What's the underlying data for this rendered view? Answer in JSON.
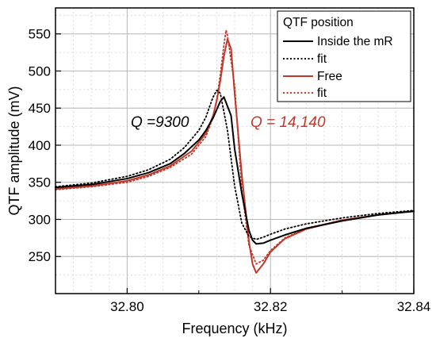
{
  "chart_data": {
    "type": "line",
    "xlabel": "Frequency (kHz)",
    "ylabel": "QTF amplitude (mV)",
    "xlim": [
      32.79,
      32.84
    ],
    "ylim": [
      200,
      585
    ],
    "xticks": [
      "32.80",
      "32.82",
      "32.84"
    ],
    "yticks": [
      "250",
      "300",
      "350",
      "400",
      "450",
      "500",
      "550"
    ],
    "grid": true,
    "legend": {
      "title": "QTF position",
      "placement": "top-right",
      "entries": [
        {
          "label": "Inside the mR",
          "color": "#000000",
          "style": "solid"
        },
        {
          "label": "fit",
          "color": "#000000",
          "style": "dotted"
        },
        {
          "label": "Free",
          "color": "#c0392b",
          "style": "solid"
        },
        {
          "label": "fit",
          "color": "#c0392b",
          "style": "dotted"
        }
      ]
    },
    "annotations": [
      {
        "text": "Q =9300",
        "color": "#000000"
      },
      {
        "text": "Q = 14,140",
        "color": "#c0392b"
      }
    ],
    "series": [
      {
        "name": "Inside the mR",
        "color": "#000000",
        "style": "solid",
        "x": [
          32.79,
          32.795,
          32.8,
          32.803,
          32.806,
          32.808,
          32.81,
          32.811,
          32.812,
          32.8125,
          32.813,
          32.8135,
          32.8145,
          32.815,
          32.816,
          32.817,
          32.8175,
          32.818,
          32.819,
          32.82,
          32.822,
          32.825,
          32.83,
          32.835,
          32.84
        ],
        "y": [
          343,
          347,
          355,
          363,
          375,
          389,
          407,
          420,
          437,
          448,
          459,
          465,
          440,
          395,
          335,
          285,
          272,
          267,
          268,
          272,
          279,
          288,
          298,
          306,
          311
        ]
      },
      {
        "name": "fit",
        "color": "#000000",
        "style": "dotted",
        "x": [
          32.79,
          32.795,
          32.8,
          32.803,
          32.806,
          32.808,
          32.81,
          32.811,
          32.8115,
          32.812,
          32.8125,
          32.813,
          32.814,
          32.815,
          32.816,
          32.817,
          32.818,
          32.819,
          32.82,
          32.822,
          32.825,
          32.83,
          32.835,
          32.84
        ],
        "y": [
          344,
          349,
          358,
          367,
          381,
          397,
          420,
          438,
          452,
          465,
          474,
          470,
          420,
          345,
          295,
          277,
          273,
          276,
          280,
          287,
          294,
          302,
          308,
          312
        ]
      },
      {
        "name": "Free",
        "color": "#c0392b",
        "style": "solid",
        "x": [
          32.79,
          32.795,
          32.8,
          32.803,
          32.806,
          32.809,
          32.811,
          32.812,
          32.8125,
          32.813,
          32.8135,
          32.814,
          32.8145,
          32.815,
          32.816,
          32.817,
          32.8175,
          32.818,
          32.819,
          32.82,
          32.822,
          32.825,
          32.83,
          32.835,
          32.84
        ],
        "y": [
          341,
          345,
          352,
          360,
          372,
          392,
          416,
          440,
          460,
          487,
          520,
          543,
          530,
          470,
          360,
          270,
          240,
          228,
          240,
          256,
          274,
          287,
          299,
          306,
          311
        ]
      },
      {
        "name": "fit",
        "color": "#c0392b",
        "style": "dotted",
        "x": [
          32.79,
          32.795,
          32.8,
          32.803,
          32.806,
          32.809,
          32.811,
          32.812,
          32.8125,
          32.813,
          32.8135,
          32.8138,
          32.814,
          32.815,
          32.816,
          32.817,
          32.818,
          32.819,
          32.82,
          32.822,
          32.825,
          32.83,
          32.835,
          32.84
        ],
        "y": [
          340,
          344,
          350,
          358,
          370,
          388,
          412,
          438,
          462,
          495,
          535,
          555,
          548,
          480,
          340,
          265,
          240,
          245,
          258,
          275,
          288,
          299,
          306,
          311
        ]
      }
    ]
  }
}
